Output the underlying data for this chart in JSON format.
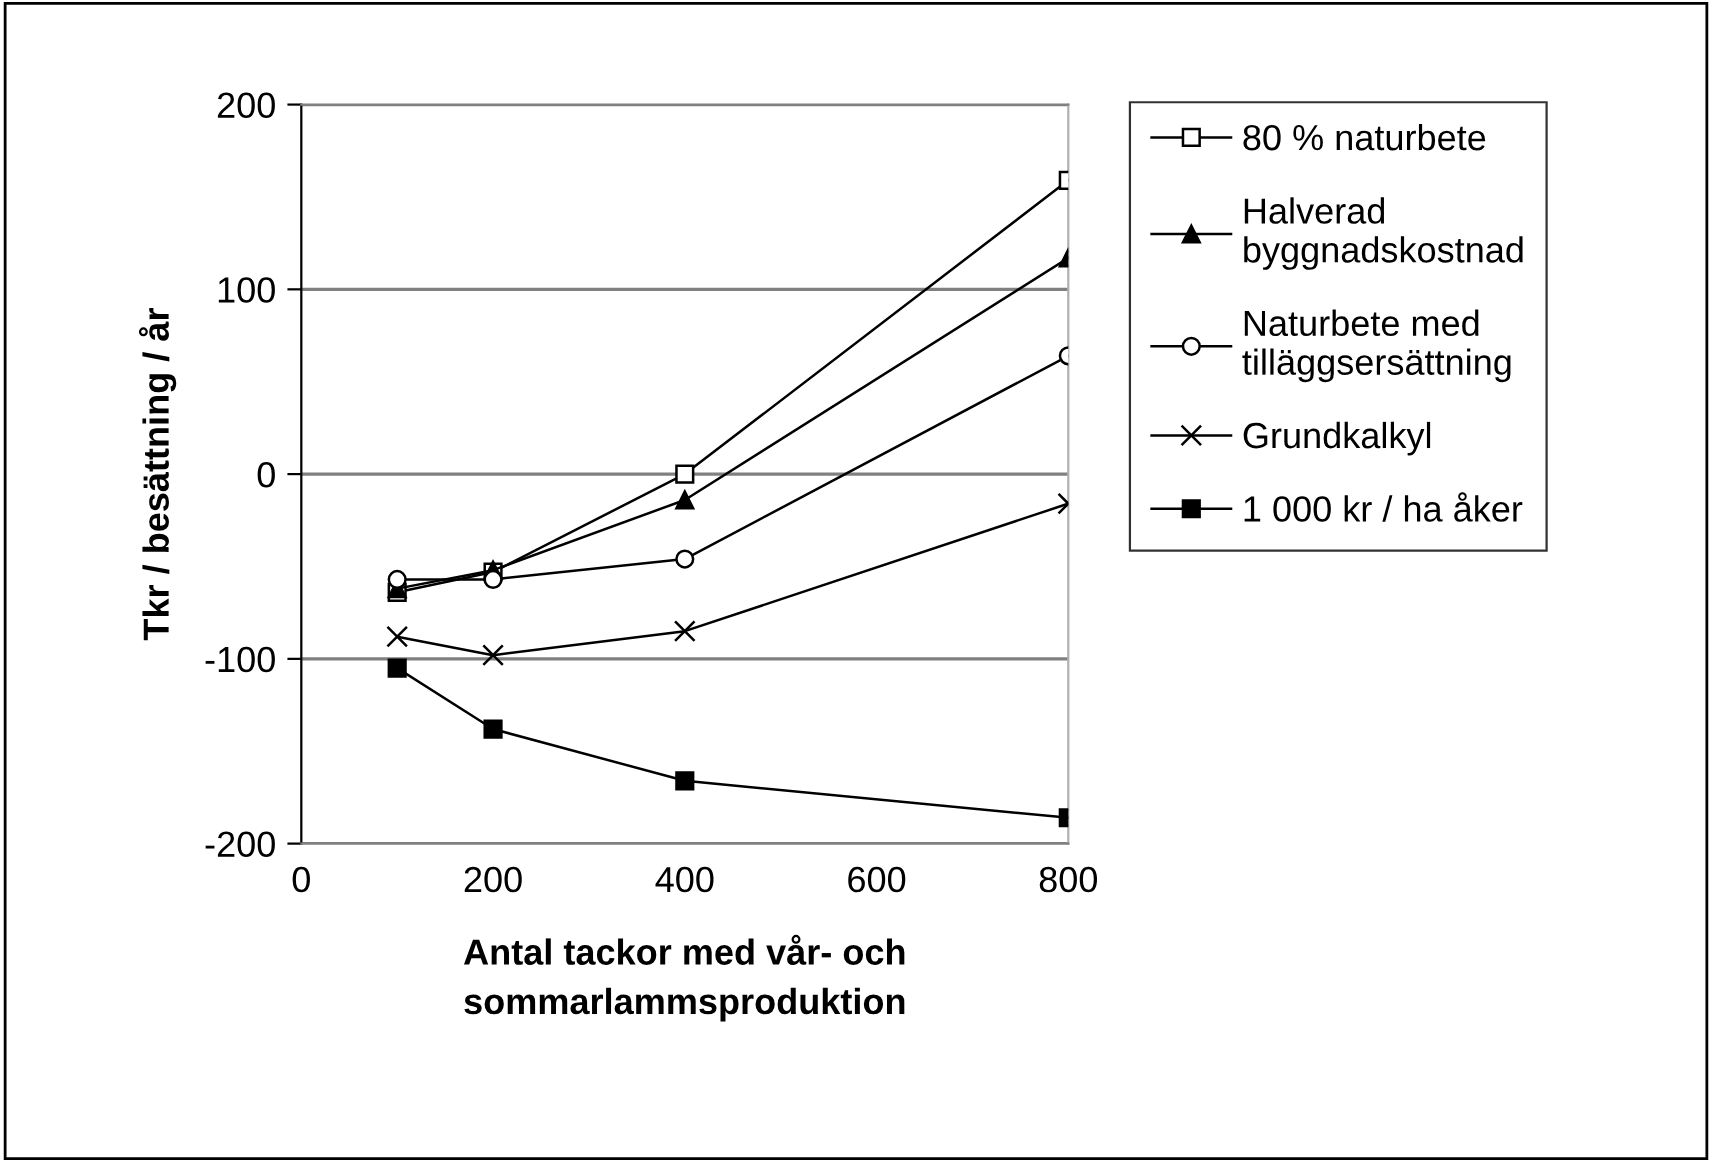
{
  "chart_data": {
    "type": "line",
    "xlabel": "Antal tackor med vår- och\nsommarlammsproduktion",
    "ylabel": "Tkr / besättning / år",
    "x": [
      100,
      200,
      400,
      800
    ],
    "series": [
      {
        "name": "80 % naturbete",
        "color": "#000000",
        "marker": "square",
        "values": [
          -64,
          -53,
          0,
          159
        ]
      },
      {
        "name": "Halverad\nbyggnadskostnad",
        "color": "#000000",
        "marker": "triangle",
        "values": [
          -62,
          -52,
          -14,
          117
        ]
      },
      {
        "name": "Naturbete med\ntilläggsersättning",
        "color": "#000000",
        "marker": "circle",
        "values": [
          -57,
          -57,
          -46,
          64
        ]
      },
      {
        "name": "Grundkalkyl",
        "color": "#000000",
        "marker": "cross",
        "values": [
          -88,
          -98,
          -85,
          -16
        ]
      },
      {
        "name": "1 000 kr / ha åker",
        "color": "#000000",
        "marker": "square",
        "values": [
          -105,
          -138,
          -166,
          -186
        ]
      }
    ],
    "xlim": [
      0,
      800
    ],
    "xticks": [
      0,
      200,
      400,
      600,
      800
    ],
    "ylim": [
      -200,
      200
    ],
    "yticks": [
      -200,
      -100,
      0,
      100,
      200
    ],
    "grid": "y",
    "legend": "right",
    "line_style": "solid"
  }
}
